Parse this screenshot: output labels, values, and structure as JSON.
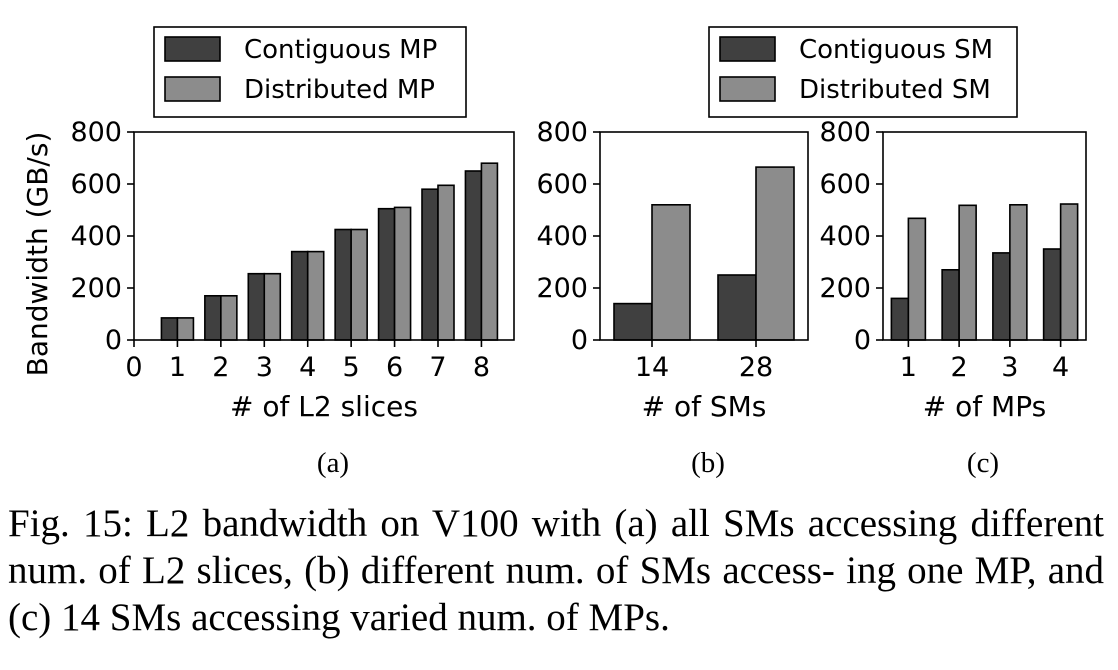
{
  "caption": "Fig. 15: L2 bandwidth on V100 with (a) all SMs accessing different num. of L2 slices, (b) different num. of SMs access- ing one MP, and (c) 14 SMs accessing varied num. of MPs.",
  "colors": {
    "dark": "#404040",
    "light": "#8c8c8c",
    "edge": "#000000"
  },
  "chart_data": [
    {
      "type": "bar",
      "panel": "(a)",
      "xlabel": "# of L2 slices",
      "ylabel": "Bandwidth (GB/s)",
      "ylim": [
        0,
        800
      ],
      "yticks": [
        "0",
        "200",
        "400",
        "600",
        "800"
      ],
      "xticks": [
        "0",
        "1",
        "2",
        "3",
        "4",
        "5",
        "6",
        "7",
        "8"
      ],
      "xlim": [
        0,
        8.75
      ],
      "categories": [
        "1",
        "2",
        "3",
        "4",
        "5",
        "6",
        "7",
        "8"
      ],
      "series": [
        {
          "name": "Contiguous MP",
          "values": [
            85,
            170,
            255,
            340,
            425,
            505,
            580,
            650
          ]
        },
        {
          "name": "Distributed MP",
          "values": [
            85,
            170,
            255,
            340,
            425,
            510,
            595,
            680
          ]
        }
      ],
      "legend": "top"
    },
    {
      "type": "bar",
      "panel": "(b)",
      "xlabel": "# of SMs",
      "ylabel": "",
      "ylim": [
        0,
        800
      ],
      "yticks": [
        "0",
        "200",
        "400",
        "600",
        "800"
      ],
      "categories": [
        "14",
        "28"
      ],
      "series": [
        {
          "name": "Contiguous SM",
          "values": [
            140,
            250
          ]
        },
        {
          "name": "Distributed SM",
          "values": [
            520,
            665
          ]
        }
      ],
      "legend": "top"
    },
    {
      "type": "bar",
      "panel": "(c)",
      "xlabel": "# of MPs",
      "ylabel": "",
      "ylim": [
        0,
        800
      ],
      "yticks": [
        "0",
        "200",
        "400",
        "600",
        "800"
      ],
      "categories": [
        "1",
        "2",
        "3",
        "4"
      ],
      "series": [
        {
          "name": "Contiguous SM",
          "values": [
            160,
            270,
            335,
            350
          ]
        },
        {
          "name": "Distributed SM",
          "values": [
            468,
            518,
            520,
            523
          ]
        }
      ]
    }
  ]
}
